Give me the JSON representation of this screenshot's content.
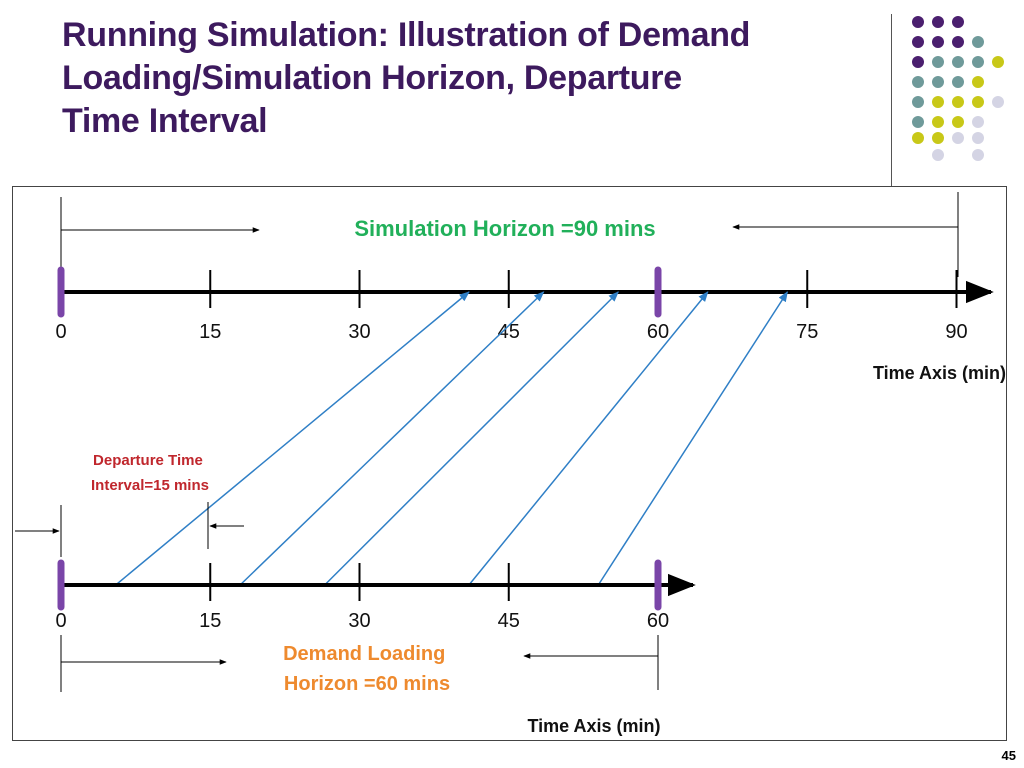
{
  "slide": {
    "title_lines": [
      "Running Simulation: Illustration of Demand",
      "Loading/Simulation Horizon, Departure",
      "Time Interval"
    ],
    "page_number": "45",
    "palette": {
      "title": "#3d1a5e",
      "dot_purple": "#4b1f6f",
      "dot_teal": "#6f9a9a",
      "dot_olive": "#c8c818",
      "dot_lavender": "#d4d4e4"
    }
  },
  "diagram": {
    "top_axis": {
      "ticks": [
        "0",
        "15",
        "30",
        "45",
        "60",
        "75",
        "90"
      ],
      "axis_label": "Time Axis (min)"
    },
    "bottom_axis": {
      "ticks": [
        "0",
        "15",
        "30",
        "45",
        "60"
      ],
      "axis_label": "Time Axis (min)"
    },
    "simulation_horizon_label": "Simulation Horizon =90 mins",
    "departure_interval_label_lines": [
      "Departure Time",
      "Interval=15 mins"
    ],
    "demand_loading_label_lines": [
      "Demand Loading",
      "Horizon =60 mins"
    ],
    "trajectories": [
      {
        "depart_min": 5.5,
        "arrive_min": 41
      },
      {
        "depart_min": 18,
        "arrive_min": 48.5
      },
      {
        "depart_min": 26.5,
        "arrive_min": 56
      },
      {
        "depart_min": 41,
        "arrive_min": 65
      },
      {
        "depart_min": 54,
        "arrive_min": 73
      }
    ],
    "colors": {
      "axis": "#000000",
      "horizon_marker": "#7a45a8",
      "trajectory": "#2f7fc6",
      "simulation_label": "#21b05a",
      "departure_label": "#c0272d",
      "demand_label": "#ee8a2e"
    }
  }
}
